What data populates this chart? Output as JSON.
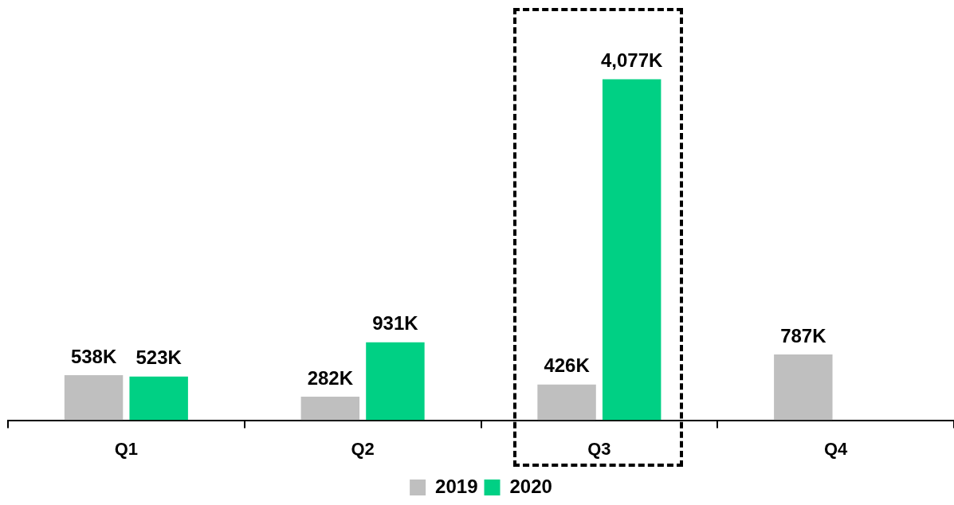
{
  "chart_data": {
    "type": "bar",
    "categories": [
      "Q1",
      "Q2",
      "Q3",
      "Q4"
    ],
    "series": [
      {
        "name": "2019",
        "color": "#bfbfbf",
        "values": [
          538,
          282,
          426,
          787
        ],
        "value_labels": [
          "538K",
          "282K",
          "426K",
          "787K"
        ]
      },
      {
        "name": "2020",
        "color": "#00d084",
        "values": [
          523,
          931,
          4077,
          null
        ],
        "value_labels": [
          "523K",
          "931K",
          "4,077K",
          null
        ]
      }
    ],
    "legend": "bottom",
    "grid": false
  }
}
